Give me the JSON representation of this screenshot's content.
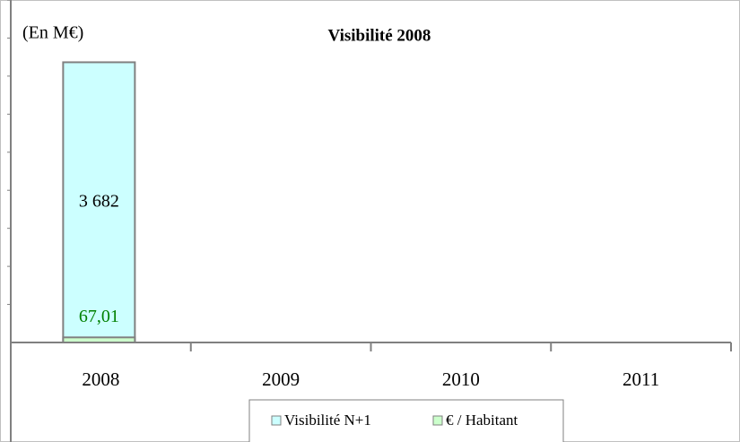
{
  "chart_data": {
    "type": "bar",
    "title": "Visibilité 2008",
    "unit_label": "(En M€)",
    "categories": [
      "2008",
      "2009",
      "2010",
      "2011"
    ],
    "series": [
      {
        "name": "Visibilité N+1",
        "color": "#ccffff",
        "values": [
          3682,
          null,
          null,
          null
        ],
        "value_labels": [
          "3 682",
          null,
          null,
          null
        ],
        "label_color": "#000000"
      },
      {
        "name": "€ / Habitant",
        "color": "#ccffcc",
        "values": [
          67.01,
          null,
          null,
          null
        ],
        "value_labels": [
          "67,01",
          null,
          null,
          null
        ],
        "label_color": "#008000"
      }
    ],
    "ylim": [
      0,
      4500
    ],
    "yticks": [
      500,
      1000,
      1500,
      2000,
      2500,
      3000,
      3500,
      4000,
      4500
    ]
  }
}
